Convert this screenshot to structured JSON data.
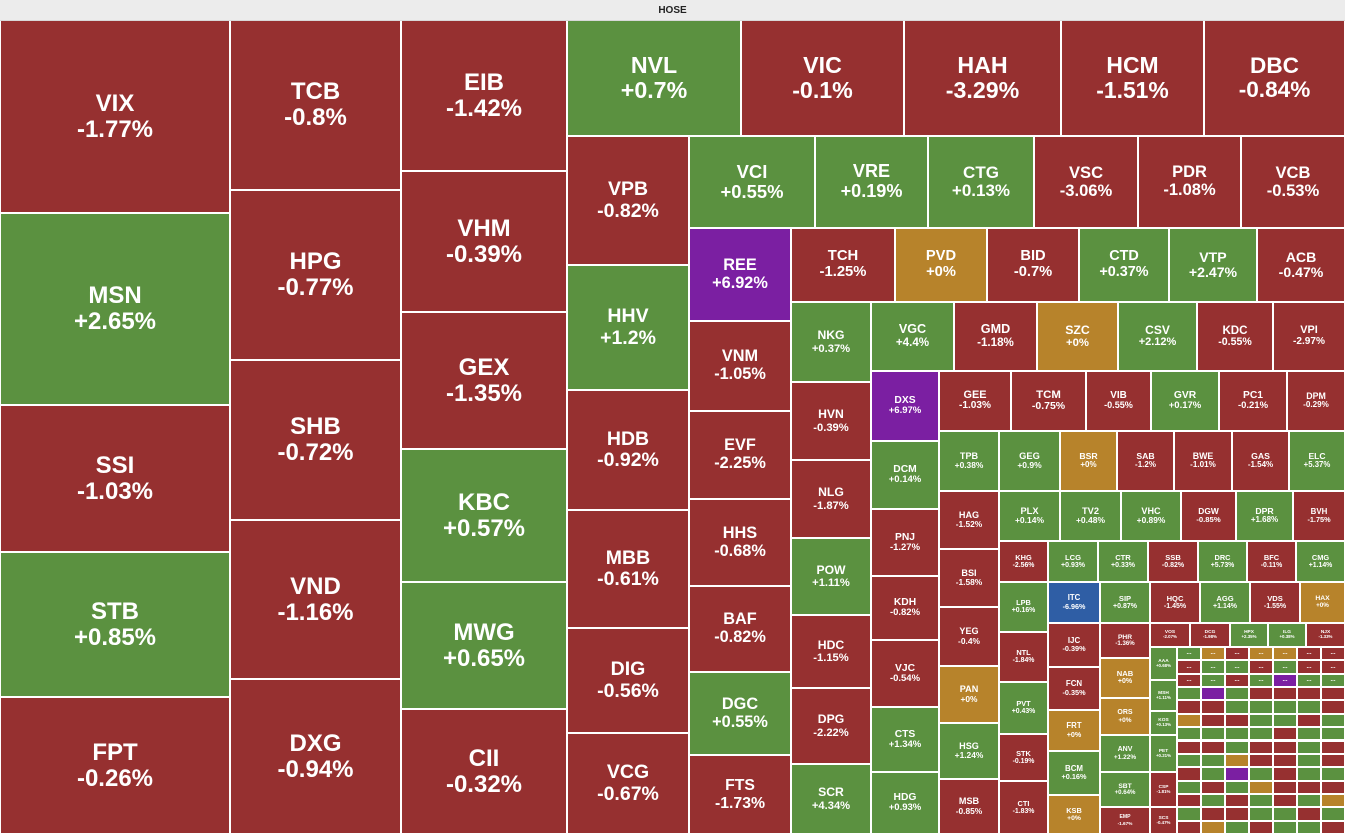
{
  "title": "HOSE",
  "ellipsis": "...",
  "colors": {
    "down": "#963030",
    "up": "#5b9140",
    "flat": "#b7832b",
    "ceiling": "#7b1fa2",
    "floor": "#2f5ea5"
  },
  "tiles": [
    {
      "sym": "VIX",
      "chg": "-1.77%",
      "s": "down"
    },
    {
      "sym": "MSN",
      "chg": "+2.65%",
      "s": "up"
    },
    {
      "sym": "SSI",
      "chg": "-1.03%",
      "s": "down"
    },
    {
      "sym": "STB",
      "chg": "+0.85%",
      "s": "up"
    },
    {
      "sym": "FPT",
      "chg": "-0.26%",
      "s": "down"
    },
    {
      "sym": "TCB",
      "chg": "-0.8%",
      "s": "down"
    },
    {
      "sym": "HPG",
      "chg": "-0.77%",
      "s": "down"
    },
    {
      "sym": "SHB",
      "chg": "-0.72%",
      "s": "down"
    },
    {
      "sym": "VND",
      "chg": "-1.16%",
      "s": "down"
    },
    {
      "sym": "DXG",
      "chg": "-0.94%",
      "s": "down"
    },
    {
      "sym": "EIB",
      "chg": "-1.42%",
      "s": "down"
    },
    {
      "sym": "VHM",
      "chg": "-0.39%",
      "s": "down"
    },
    {
      "sym": "GEX",
      "chg": "-1.35%",
      "s": "down"
    },
    {
      "sym": "KBC",
      "chg": "+0.57%",
      "s": "up"
    },
    {
      "sym": "MWG",
      "chg": "+0.65%",
      "s": "up"
    },
    {
      "sym": "CII",
      "chg": "-0.32%",
      "s": "down"
    },
    {
      "sym": "NVL",
      "chg": "+0.7%",
      "s": "up"
    },
    {
      "sym": "VIC",
      "chg": "-0.1%",
      "s": "down"
    },
    {
      "sym": "HAH",
      "chg": "-3.29%",
      "s": "down"
    },
    {
      "sym": "HCM",
      "chg": "-1.51%",
      "s": "down"
    },
    {
      "sym": "DBC",
      "chg": "-0.84%",
      "s": "down"
    },
    {
      "sym": "VPB",
      "chg": "-0.82%",
      "s": "down"
    },
    {
      "sym": "HHV",
      "chg": "+1.2%",
      "s": "up"
    },
    {
      "sym": "HDB",
      "chg": "-0.92%",
      "s": "down"
    },
    {
      "sym": "MBB",
      "chg": "-0.61%",
      "s": "down"
    },
    {
      "sym": "DIG",
      "chg": "-0.56%",
      "s": "down"
    },
    {
      "sym": "VCG",
      "chg": "-0.67%",
      "s": "down"
    },
    {
      "sym": "VCI",
      "chg": "+0.55%",
      "s": "up"
    },
    {
      "sym": "VRE",
      "chg": "+0.19%",
      "s": "up"
    },
    {
      "sym": "CTG",
      "chg": "+0.13%",
      "s": "up"
    },
    {
      "sym": "VSC",
      "chg": "-3.06%",
      "s": "down"
    },
    {
      "sym": "PDR",
      "chg": "-1.08%",
      "s": "down"
    },
    {
      "sym": "VCB",
      "chg": "-0.53%",
      "s": "down"
    },
    {
      "sym": "REE",
      "chg": "+6.92%",
      "s": "ceiling"
    },
    {
      "sym": "VNM",
      "chg": "-1.05%",
      "s": "down"
    },
    {
      "sym": "EVF",
      "chg": "-2.25%",
      "s": "down"
    },
    {
      "sym": "HHS",
      "chg": "-0.68%",
      "s": "down"
    },
    {
      "sym": "BAF",
      "chg": "-0.82%",
      "s": "down"
    },
    {
      "sym": "DGC",
      "chg": "+0.55%",
      "s": "up"
    },
    {
      "sym": "FTS",
      "chg": "-1.73%",
      "s": "down"
    },
    {
      "sym": "TCH",
      "chg": "-1.25%",
      "s": "down"
    },
    {
      "sym": "PVD",
      "chg": "+0%",
      "s": "flat"
    },
    {
      "sym": "BID",
      "chg": "-0.7%",
      "s": "down"
    },
    {
      "sym": "CTD",
      "chg": "+0.37%",
      "s": "up"
    },
    {
      "sym": "VTP",
      "chg": "+2.47%",
      "s": "up"
    },
    {
      "sym": "ACB",
      "chg": "-0.47%",
      "s": "down"
    },
    {
      "sym": "NKG",
      "chg": "+0.37%",
      "s": "up"
    },
    {
      "sym": "VGC",
      "chg": "+4.4%",
      "s": "up"
    },
    {
      "sym": "GMD",
      "chg": "-1.18%",
      "s": "down"
    },
    {
      "sym": "SZC",
      "chg": "+0%",
      "s": "flat"
    },
    {
      "sym": "CSV",
      "chg": "+2.12%",
      "s": "up"
    },
    {
      "sym": "KDC",
      "chg": "-0.55%",
      "s": "down"
    },
    {
      "sym": "VPI",
      "chg": "-2.97%",
      "s": "down"
    },
    {
      "sym": "HVN",
      "chg": "-0.39%",
      "s": "down"
    },
    {
      "sym": "DXS",
      "chg": "+6.97%",
      "s": "ceiling"
    },
    {
      "sym": "GEE",
      "chg": "-1.03%",
      "s": "down"
    },
    {
      "sym": "TCM",
      "chg": "-0.75%",
      "s": "down"
    },
    {
      "sym": "VIB",
      "chg": "-0.55%",
      "s": "down"
    },
    {
      "sym": "GVR",
      "chg": "+0.17%",
      "s": "up"
    },
    {
      "sym": "PC1",
      "chg": "-0.21%",
      "s": "down"
    },
    {
      "sym": "DPM",
      "chg": "-0.29%",
      "s": "down"
    },
    {
      "sym": "NLG",
      "chg": "-1.87%",
      "s": "down"
    },
    {
      "sym": "DCM",
      "chg": "+0.14%",
      "s": "up"
    },
    {
      "sym": "TPB",
      "chg": "+0.38%",
      "s": "up"
    },
    {
      "sym": "GEG",
      "chg": "+0.9%",
      "s": "up"
    },
    {
      "sym": "BSR",
      "chg": "+0%",
      "s": "flat"
    },
    {
      "sym": "SAB",
      "chg": "-1.2%",
      "s": "down"
    },
    {
      "sym": "BWE",
      "chg": "-1.01%",
      "s": "down"
    },
    {
      "sym": "GAS",
      "chg": "-1.54%",
      "s": "down"
    },
    {
      "sym": "ELC",
      "chg": "+5.37%",
      "s": "up"
    },
    {
      "sym": "POW",
      "chg": "+1.11%",
      "s": "up"
    },
    {
      "sym": "PNJ",
      "chg": "-1.27%",
      "s": "down"
    },
    {
      "sym": "HAG",
      "chg": "-1.52%",
      "s": "down"
    },
    {
      "sym": "PLX",
      "chg": "+0.14%",
      "s": "up"
    },
    {
      "sym": "TV2",
      "chg": "+0.48%",
      "s": "up"
    },
    {
      "sym": "VHC",
      "chg": "+0.89%",
      "s": "up"
    },
    {
      "sym": "DGW",
      "chg": "-0.85%",
      "s": "down"
    },
    {
      "sym": "DPR",
      "chg": "+1.68%",
      "s": "up"
    },
    {
      "sym": "BVH",
      "chg": "-1.75%",
      "s": "down"
    },
    {
      "sym": "KHG",
      "chg": "-2.56%",
      "s": "down"
    },
    {
      "sym": "LCG",
      "chg": "+0.93%",
      "s": "up"
    },
    {
      "sym": "CTR",
      "chg": "+0.33%",
      "s": "up"
    },
    {
      "sym": "SSB",
      "chg": "-0.82%",
      "s": "down"
    },
    {
      "sym": "DRC",
      "chg": "+5.73%",
      "s": "up"
    },
    {
      "sym": "BFC",
      "chg": "-0.11%",
      "s": "down"
    },
    {
      "sym": "CMG",
      "chg": "+1.14%",
      "s": "up"
    },
    {
      "sym": "BSI",
      "chg": "-1.58%",
      "s": "down"
    },
    {
      "sym": "KDH",
      "chg": "-0.82%",
      "s": "down"
    },
    {
      "sym": "LPB",
      "chg": "+0.16%",
      "s": "up"
    },
    {
      "sym": "ITC",
      "chg": "-6.96%",
      "s": "floor"
    },
    {
      "sym": "SIP",
      "chg": "+0.87%",
      "s": "up"
    },
    {
      "sym": "HQC",
      "chg": "-1.45%",
      "s": "down"
    },
    {
      "sym": "AGG",
      "chg": "+1.14%",
      "s": "up"
    },
    {
      "sym": "VDS",
      "chg": "-1.55%",
      "s": "down"
    },
    {
      "sym": "HAX",
      "chg": "+0%",
      "s": "flat"
    },
    {
      "sym": "HDC",
      "chg": "-1.15%",
      "s": "down"
    },
    {
      "sym": "YEG",
      "chg": "-0.4%",
      "s": "down"
    },
    {
      "sym": "IJC",
      "chg": "-0.39%",
      "s": "down"
    },
    {
      "sym": "PHR",
      "chg": "-1.36%",
      "s": "down"
    },
    {
      "sym": "VOS",
      "chg": "-2.07%",
      "s": "down"
    },
    {
      "sym": "DCG",
      "chg": "-1.98%",
      "s": "down"
    },
    {
      "sym": "HPX",
      "chg": "+2.35%",
      "s": "up"
    },
    {
      "sym": "ILG",
      "chg": "+0.38%",
      "s": "up"
    },
    {
      "sym": "NJX",
      "chg": "-1.33%",
      "s": "down"
    },
    {
      "sym": "NTL",
      "chg": "-1.84%",
      "s": "down"
    },
    {
      "sym": "VJC",
      "chg": "-0.54%",
      "s": "down"
    },
    {
      "sym": "PAN",
      "chg": "+0%",
      "s": "flat"
    },
    {
      "sym": "FCN",
      "chg": "-0.35%",
      "s": "down"
    },
    {
      "sym": "NAB",
      "chg": "+0%",
      "s": "flat"
    },
    {
      "sym": "AAA",
      "chg": "+0.68%",
      "s": "up"
    },
    {
      "sym": "DPG",
      "chg": "-2.22%",
      "s": "down"
    },
    {
      "sym": "PVT",
      "chg": "+0.43%",
      "s": "up"
    },
    {
      "sym": "FRT",
      "chg": "+0%",
      "s": "flat"
    },
    {
      "sym": "ORS",
      "chg": "+0%",
      "s": "flat"
    },
    {
      "sym": "MSH",
      "chg": "+1.11%",
      "s": "up"
    },
    {
      "sym": "KOS",
      "chg": "+0.13%",
      "s": "up"
    },
    {
      "sym": "CTS",
      "chg": "+1.34%",
      "s": "up"
    },
    {
      "sym": "HSG",
      "chg": "+1.24%",
      "s": "up"
    },
    {
      "sym": "STK",
      "chg": "-0.19%",
      "s": "down"
    },
    {
      "sym": "ANV",
      "chg": "+1.22%",
      "s": "up"
    },
    {
      "sym": "PET",
      "chg": "+0.21%",
      "s": "up"
    },
    {
      "sym": "BCM",
      "chg": "+0.16%",
      "s": "up"
    },
    {
      "sym": "SBT",
      "chg": "+0.64%",
      "s": "up"
    },
    {
      "sym": "CSP",
      "chg": "-1.81%",
      "s": "down"
    },
    {
      "sym": "SCR",
      "chg": "+4.34%",
      "s": "up"
    },
    {
      "sym": "HDG",
      "chg": "+0.93%",
      "s": "up"
    },
    {
      "sym": "MSB",
      "chg": "-0.85%",
      "s": "down"
    },
    {
      "sym": "CTI",
      "chg": "-1.83%",
      "s": "down"
    },
    {
      "sym": "KSB",
      "chg": "+0%",
      "s": "flat"
    },
    {
      "sym": "EMP",
      "chg": "-1.67%",
      "s": "down"
    },
    {
      "sym": "SCS",
      "chg": "-0.47%",
      "s": "down"
    }
  ],
  "small_tiles": [
    "up",
    "flat",
    "down",
    "flat",
    "flat",
    "down",
    "down",
    "down",
    "up",
    "up",
    "down",
    "up",
    "down",
    "down",
    "down",
    "up",
    "down",
    "up",
    "ceiling",
    "up",
    "up",
    "up",
    "ceiling",
    "up",
    "down",
    "down",
    "down",
    "down",
    "down",
    "down",
    "up",
    "up",
    "up",
    "up",
    "down",
    "flat",
    "down",
    "down",
    "up",
    "up",
    "down",
    "up",
    "up",
    "up",
    "up",
    "up",
    "down",
    "up",
    "up",
    "down",
    "down",
    "up",
    "down",
    "down",
    "up",
    "down",
    "up",
    "up",
    "flat",
    "down",
    "down",
    "up",
    "down",
    "down",
    "up",
    "ceiling",
    "up",
    "down",
    "up",
    "up",
    "up",
    "down",
    "up",
    "flat",
    "down",
    "down",
    "down",
    "down",
    "up",
    "down",
    "up",
    "down",
    "up",
    "flat",
    "up",
    "down",
    "down",
    "up",
    "up",
    "down",
    "up",
    "down",
    "flat",
    "up",
    "down",
    "up",
    "up",
    "down"
  ]
}
